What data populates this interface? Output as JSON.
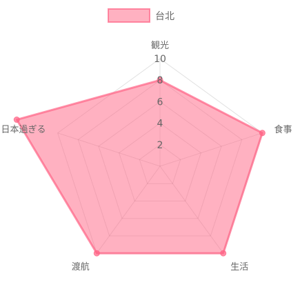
{
  "chart_data": {
    "type": "radar",
    "categories": [
      "観光",
      "食事",
      "生活",
      "渡航",
      "日本過ぎる"
    ],
    "series": [
      {
        "name": "台北",
        "values": [
          8,
          10,
          10,
          10,
          14
        ],
        "color": "#ff6384"
      }
    ],
    "rlim": [
      0,
      10
    ],
    "ticks": [
      2,
      4,
      6,
      8,
      10
    ],
    "legend_position": "top-center",
    "grid": true
  }
}
